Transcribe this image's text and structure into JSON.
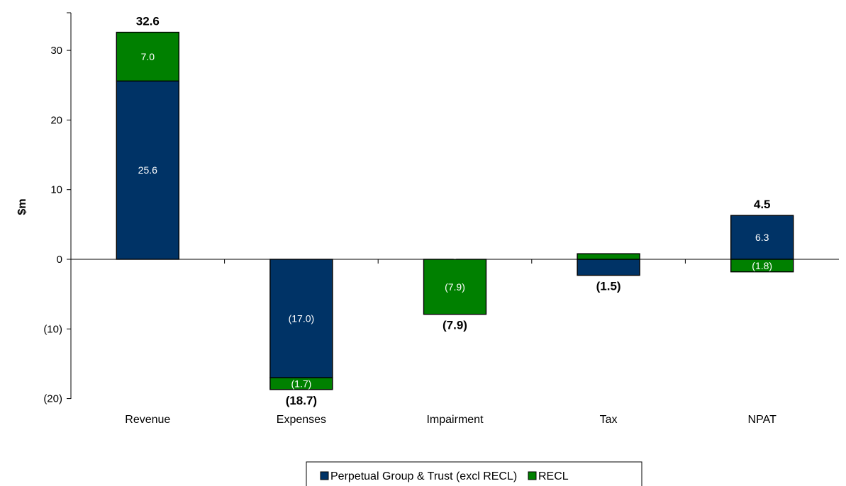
{
  "chart_data": {
    "type": "bar",
    "stacked": true,
    "ylabel": "$m",
    "ylim": [
      -20,
      35
    ],
    "yticks": [
      {
        "value": 30,
        "label": "30"
      },
      {
        "value": 20,
        "label": "20"
      },
      {
        "value": 10,
        "label": "10"
      },
      {
        "value": 0,
        "label": "0"
      },
      {
        "value": -10,
        "label": "(10)"
      },
      {
        "value": -20,
        "label": "(20)"
      }
    ],
    "categories": [
      "Revenue",
      "Expenses",
      "Impairment",
      "Tax",
      "NPAT"
    ],
    "series": [
      {
        "name": "Perpetual Group & Trust (excl RECL)",
        "color": "#003366",
        "label_color": "#ffffff",
        "values": [
          25.6,
          -17.0,
          0.0,
          -2.3,
          6.3
        ],
        "labels": [
          "25.6",
          "(17.0)",
          "-",
          "",
          "6.3"
        ]
      },
      {
        "name": "RECL",
        "color": "#008000",
        "label_color": "#ffffff",
        "values": [
          7.0,
          -1.7,
          -7.9,
          0.8,
          -1.8
        ],
        "labels": [
          "7.0",
          "(1.7)",
          "(7.9)",
          "",
          "(1.8)"
        ]
      }
    ],
    "totals": [
      {
        "value": 32.6,
        "label": "32.6"
      },
      {
        "value": -18.7,
        "label": "(18.7)"
      },
      {
        "value": -7.9,
        "label": "(7.9)"
      },
      {
        "value": -1.5,
        "label": "(1.5)"
      },
      {
        "value": 4.5,
        "label": "4.5"
      }
    ],
    "legend": {
      "placement": "bottom",
      "entries": [
        "Perpetual Group & Trust (excl RECL)",
        "RECL"
      ]
    }
  }
}
